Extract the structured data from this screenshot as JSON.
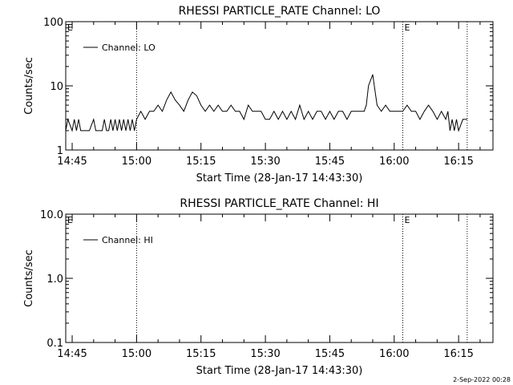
{
  "footer_timestamp": "2-Sep-2022 00:28",
  "chart_data": [
    {
      "type": "line",
      "title": "RHESSI PARTICLE_RATE Channel: LO",
      "xlabel": "Start Time (28-Jan-17 14:43:30)",
      "ylabel": "Counts/sec",
      "yscale": "log",
      "ylim": [
        1,
        100
      ],
      "xlim": [
        "14:43:30",
        "16:23:00"
      ],
      "ytick_labels": [
        "1",
        "10",
        "100"
      ],
      "ytick_values": [
        1,
        10,
        100
      ],
      "xtick_labels": [
        "14:45",
        "15:00",
        "15:15",
        "15:30",
        "15:45",
        "16:00",
        "16:15"
      ],
      "vlines": [
        "15:00",
        "16:02",
        "16:17"
      ],
      "annotations": [
        {
          "text": "E",
          "at": "14:43:30"
        },
        {
          "text": "E",
          "at": "16:02"
        }
      ],
      "legend": {
        "position": "top-left",
        "entries": [
          "Channel: LO"
        ]
      },
      "series": [
        {
          "name": "Channel: LO",
          "x": [
            "14:43:30",
            "14:44",
            "14:45",
            "14:45:30",
            "14:46",
            "14:46:30",
            "14:47",
            "14:47:30",
            "14:48",
            "14:49",
            "14:50",
            "14:50:30",
            "14:51",
            "14:51:30",
            "14:52",
            "14:52:30",
            "14:53",
            "14:53:30",
            "14:54",
            "14:54:30",
            "14:55",
            "14:55:30",
            "14:56",
            "14:56:30",
            "14:57",
            "14:57:30",
            "14:58",
            "14:58:30",
            "14:59",
            "14:59:30",
            "15:00",
            "15:01",
            "15:02",
            "15:03",
            "15:04",
            "15:05",
            "15:06",
            "15:07",
            "15:08",
            "15:09",
            "15:10",
            "15:11",
            "15:12",
            "15:13",
            "15:14",
            "15:15",
            "15:16",
            "15:17",
            "15:18",
            "15:19",
            "15:20",
            "15:21",
            "15:22",
            "15:23",
            "15:24",
            "15:25",
            "15:26",
            "15:27",
            "15:28",
            "15:29",
            "15:30",
            "15:31",
            "15:32",
            "15:33",
            "15:34",
            "15:35",
            "15:36",
            "15:37",
            "15:38",
            "15:39",
            "15:40",
            "15:41",
            "15:42",
            "15:43",
            "15:44",
            "15:45",
            "15:46",
            "15:47",
            "15:48",
            "15:49",
            "15:50",
            "15:51",
            "15:52",
            "15:53",
            "15:53:30",
            "15:54",
            "15:55",
            "15:56",
            "15:57",
            "15:58",
            "15:59",
            "16:00",
            "16:01",
            "16:02",
            "16:03",
            "16:04",
            "16:05",
            "16:06",
            "16:07",
            "16:08",
            "16:09",
            "16:10",
            "16:11",
            "16:12",
            "16:12:30",
            "16:13",
            "16:13:30",
            "16:14",
            "16:14:30",
            "16:15",
            "16:16",
            "16:17"
          ],
          "values": [
            2,
            3,
            2,
            3,
            2,
            3,
            2,
            2,
            2,
            2,
            3,
            2,
            2,
            2,
            2,
            3,
            2,
            2,
            3,
            2,
            3,
            2,
            3,
            2,
            3,
            2,
            3,
            2,
            3,
            2,
            3,
            4,
            3,
            4,
            4,
            5,
            4,
            6,
            8,
            6,
            5,
            4,
            6,
            8,
            7,
            5,
            4,
            5,
            4,
            5,
            4,
            4,
            5,
            4,
            4,
            3,
            5,
            4,
            4,
            4,
            3,
            3,
            4,
            3,
            4,
            3,
            4,
            3,
            5,
            3,
            4,
            3,
            4,
            4,
            3,
            4,
            3,
            4,
            4,
            3,
            4,
            4,
            4,
            4,
            5,
            10,
            15,
            5,
            4,
            5,
            4,
            4,
            4,
            4,
            5,
            4,
            4,
            3,
            4,
            5,
            4,
            3,
            4,
            3,
            4,
            2,
            3,
            2,
            3,
            2,
            3,
            3
          ]
        }
      ]
    },
    {
      "type": "line",
      "title": "RHESSI PARTICLE_RATE Channel: HI",
      "xlabel": "Start Time (28-Jan-17 14:43:30)",
      "ylabel": "Counts/sec",
      "yscale": "log",
      "ylim": [
        0.1,
        10
      ],
      "xlim": [
        "14:43:30",
        "16:23:00"
      ],
      "ytick_labels": [
        "0.1",
        "1.0",
        "10.0"
      ],
      "ytick_values": [
        0.1,
        1,
        10
      ],
      "xtick_labels": [
        "14:45",
        "15:00",
        "15:15",
        "15:30",
        "15:45",
        "16:00",
        "16:15"
      ],
      "vlines": [
        "15:00",
        "16:02",
        "16:17"
      ],
      "annotations": [
        {
          "text": "E",
          "at": "14:43:30"
        },
        {
          "text": "E",
          "at": "16:02"
        }
      ],
      "legend": {
        "position": "top-left",
        "entries": [
          "Channel: HI"
        ]
      },
      "series": [
        {
          "name": "Channel: HI",
          "x": [],
          "values": []
        }
      ]
    }
  ]
}
